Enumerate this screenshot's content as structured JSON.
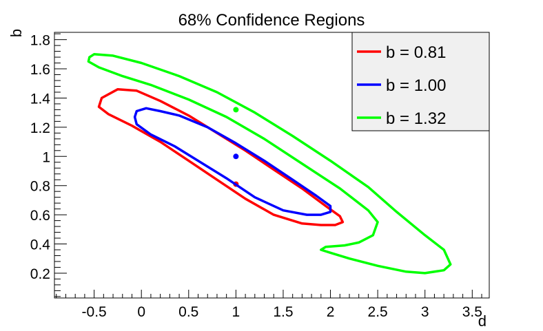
{
  "chart_data": {
    "type": "line",
    "title": "68% Confidence Regions",
    "xlabel": "d",
    "ylabel": "b",
    "xlim": [
      -0.92,
      3.68
    ],
    "ylim": [
      0.03,
      1.85
    ],
    "xticks": [
      -0.5,
      0,
      0.5,
      1,
      1.5,
      2,
      2.5,
      3,
      3.5
    ],
    "xtick_labels": [
      "-0.5",
      "0",
      "0.5",
      "1",
      "1.5",
      "2",
      "2.5",
      "3",
      "3.5"
    ],
    "yticks": [
      0.2,
      0.4,
      0.6,
      0.8,
      1.0,
      1.2,
      1.4,
      1.6,
      1.8
    ],
    "ytick_labels": [
      "0.2",
      "0.4",
      "0.6",
      "0.8",
      "1",
      "1.2",
      "1.4",
      "1.6",
      "1.8"
    ],
    "grid": false,
    "legend_position": "top-right",
    "series": [
      {
        "name": "b = 0.81",
        "color": "#ff0000",
        "center": {
          "x": 1.0,
          "y": 0.81
        },
        "contour": [
          [
            -0.42,
            1.4
          ],
          [
            -0.25,
            1.46
          ],
          [
            -0.05,
            1.45
          ],
          [
            0.2,
            1.38
          ],
          [
            0.5,
            1.28
          ],
          [
            0.8,
            1.16
          ],
          [
            1.1,
            1.04
          ],
          [
            1.4,
            0.91
          ],
          [
            1.7,
            0.78
          ],
          [
            1.95,
            0.66
          ],
          [
            2.1,
            0.59
          ],
          [
            2.13,
            0.55
          ],
          [
            2.05,
            0.53
          ],
          [
            1.9,
            0.53
          ],
          [
            1.7,
            0.54
          ],
          [
            1.4,
            0.6
          ],
          [
            1.1,
            0.71
          ],
          [
            0.8,
            0.84
          ],
          [
            0.5,
            0.97
          ],
          [
            0.2,
            1.1
          ],
          [
            -0.1,
            1.21
          ],
          [
            -0.35,
            1.29
          ],
          [
            -0.45,
            1.34
          ],
          [
            -0.42,
            1.4
          ]
        ]
      },
      {
        "name": "b = 1.00",
        "color": "#0000ff",
        "center": {
          "x": 1.0,
          "y": 1.0
        },
        "contour": [
          [
            -0.05,
            1.31
          ],
          [
            0.05,
            1.33
          ],
          [
            0.2,
            1.31
          ],
          [
            0.4,
            1.28
          ],
          [
            0.7,
            1.2
          ],
          [
            1.0,
            1.09
          ],
          [
            1.3,
            0.97
          ],
          [
            1.6,
            0.84
          ],
          [
            1.85,
            0.73
          ],
          [
            2.0,
            0.66
          ],
          [
            2.0,
            0.62
          ],
          [
            1.9,
            0.6
          ],
          [
            1.75,
            0.6
          ],
          [
            1.5,
            0.63
          ],
          [
            1.2,
            0.72
          ],
          [
            0.9,
            0.85
          ],
          [
            0.6,
            0.97
          ],
          [
            0.35,
            1.07
          ],
          [
            0.1,
            1.15
          ],
          [
            -0.05,
            1.22
          ],
          [
            -0.07,
            1.27
          ],
          [
            -0.05,
            1.31
          ]
        ]
      },
      {
        "name": "b = 1.32",
        "color": "#00ff00",
        "center": {
          "x": 1.0,
          "y": 1.32
        },
        "contour": [
          [
            -0.55,
            1.68
          ],
          [
            -0.5,
            1.7
          ],
          [
            -0.3,
            1.69
          ],
          [
            0.0,
            1.64
          ],
          [
            0.4,
            1.55
          ],
          [
            0.8,
            1.44
          ],
          [
            1.2,
            1.3
          ],
          [
            1.6,
            1.14
          ],
          [
            2.0,
            0.97
          ],
          [
            2.4,
            0.79
          ],
          [
            2.7,
            0.62
          ],
          [
            3.0,
            0.46
          ],
          [
            3.2,
            0.36
          ],
          [
            3.27,
            0.26
          ],
          [
            3.2,
            0.22
          ],
          [
            3.0,
            0.2
          ],
          [
            2.8,
            0.21
          ],
          [
            2.5,
            0.25
          ],
          [
            2.2,
            0.3
          ],
          [
            2.0,
            0.34
          ],
          [
            1.9,
            0.36
          ],
          [
            1.95,
            0.38
          ],
          [
            2.15,
            0.39
          ],
          [
            2.3,
            0.41
          ],
          [
            2.45,
            0.46
          ],
          [
            2.5,
            0.55
          ],
          [
            2.4,
            0.63
          ],
          [
            2.1,
            0.78
          ],
          [
            1.7,
            0.95
          ],
          [
            1.3,
            1.12
          ],
          [
            0.9,
            1.27
          ],
          [
            0.5,
            1.39
          ],
          [
            0.1,
            1.49
          ],
          [
            -0.2,
            1.55
          ],
          [
            -0.45,
            1.61
          ],
          [
            -0.56,
            1.65
          ],
          [
            -0.55,
            1.68
          ]
        ]
      }
    ]
  }
}
